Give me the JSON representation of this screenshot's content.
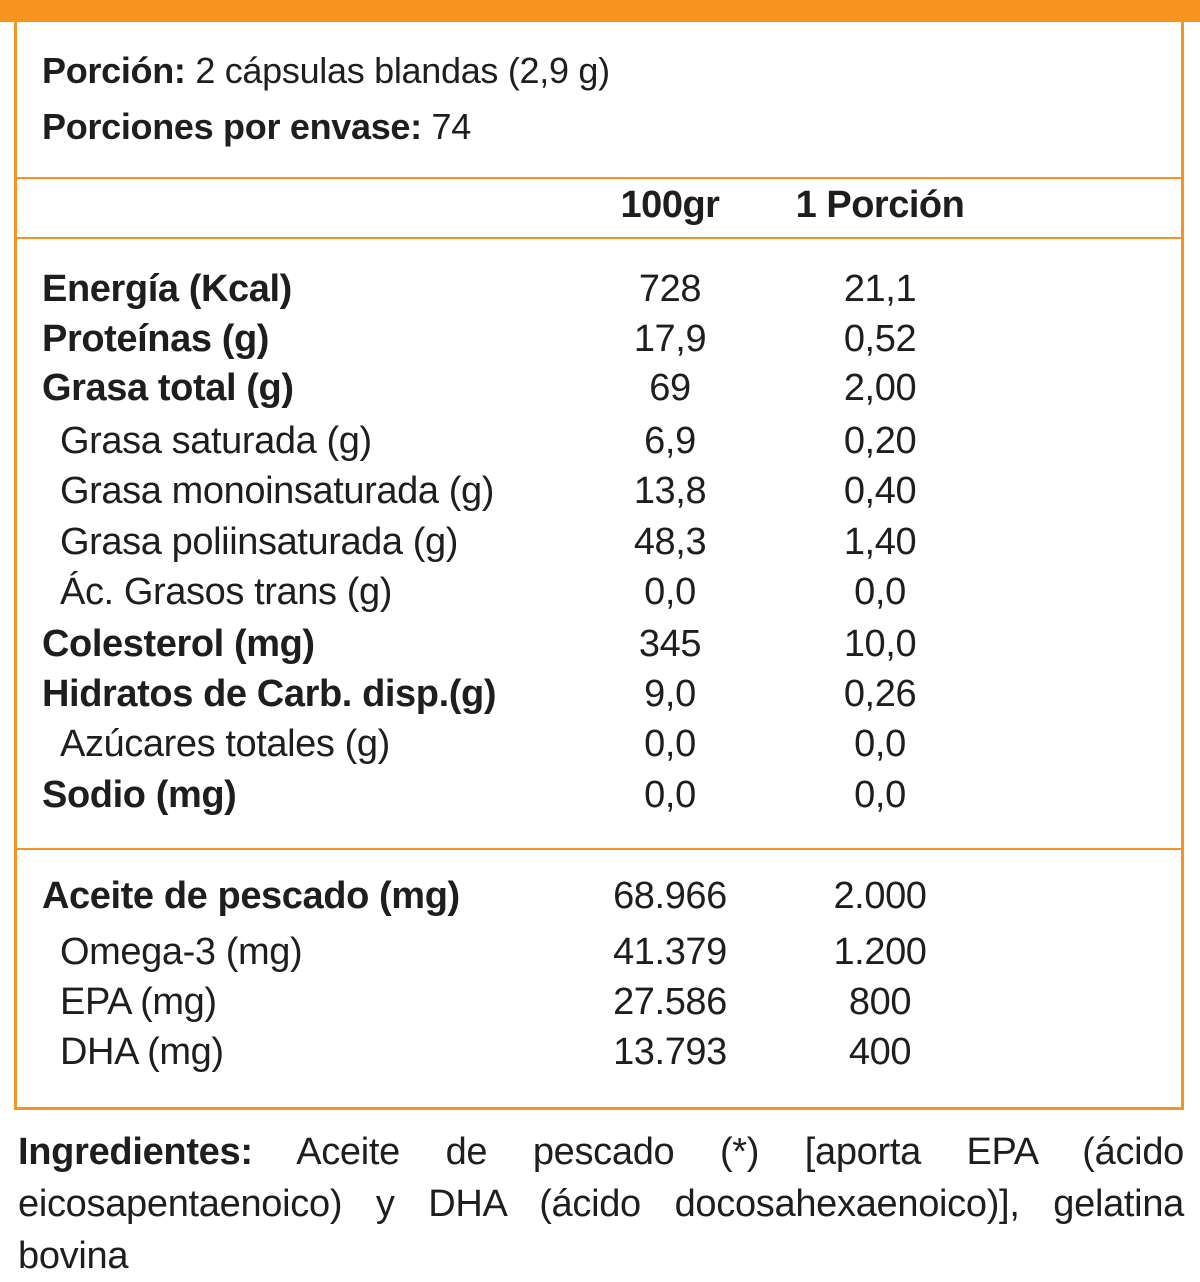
{
  "colors": {
    "accent": "#f7941d",
    "text": "#1e1e1e"
  },
  "serving": {
    "portion_label": "Porción:",
    "portion_value": "2 cápsulas blandas (2,9 g)",
    "per_container_label": "Porciones por envase:",
    "per_container_value": "74"
  },
  "columns": {
    "per100": "100gr",
    "per_portion": "1 Porción"
  },
  "nutrients": [
    {
      "name": "Energía (Kcal)",
      "per100": "728",
      "per_portion": "21,1",
      "level": "main"
    },
    {
      "name": "Proteínas (g)",
      "per100": "17,9",
      "per_portion": "0,52",
      "level": "main"
    },
    {
      "name": "Grasa total (g)",
      "per100": "69",
      "per_portion": "2,00",
      "level": "main"
    },
    {
      "name": "Grasa saturada (g)",
      "per100": "6,9",
      "per_portion": "0,20",
      "level": "sub"
    },
    {
      "name": "Grasa monoinsaturada (g)",
      "per100": "13,8",
      "per_portion": "0,40",
      "level": "sub"
    },
    {
      "name": "Grasa poliinsaturada (g)",
      "per100": "48,3",
      "per_portion": "1,40",
      "level": "sub"
    },
    {
      "name": "Ác. Grasos trans (g)",
      "per100": "0,0",
      "per_portion": "0,0",
      "level": "sub"
    },
    {
      "name": "Colesterol (mg)",
      "per100": "345",
      "per_portion": "10,0",
      "level": "main"
    },
    {
      "name": "Hidratos de Carb. disp.(g)",
      "per100": "9,0",
      "per_portion": "0,26",
      "level": "main"
    },
    {
      "name": "Azúcares totales (g)",
      "per100": "0,0",
      "per_portion": "0,0",
      "level": "sub"
    },
    {
      "name": "Sodio (mg)",
      "per100": "0,0",
      "per_portion": "0,0",
      "level": "main"
    }
  ],
  "oils": [
    {
      "name": "Aceite de pescado (mg)",
      "per100": "68.966",
      "per_portion": "2.000",
      "level": "main"
    },
    {
      "name": "Omega-3 (mg)",
      "per100": "41.379",
      "per_portion": "1.200",
      "level": "sub"
    },
    {
      "name": "EPA (mg)",
      "per100": "27.586",
      "per_portion": "800",
      "level": "sub"
    },
    {
      "name": "DHA (mg)",
      "per100": "13.793",
      "per_portion": "400",
      "level": "sub"
    }
  ],
  "ingredients": {
    "label": "Ingredientes:",
    "text": "Aceite de pescado (*) [aporta EPA (ácido eicosapentaenoico) y DHA (ácido docosahexaenoico)], gelatina bovina"
  }
}
